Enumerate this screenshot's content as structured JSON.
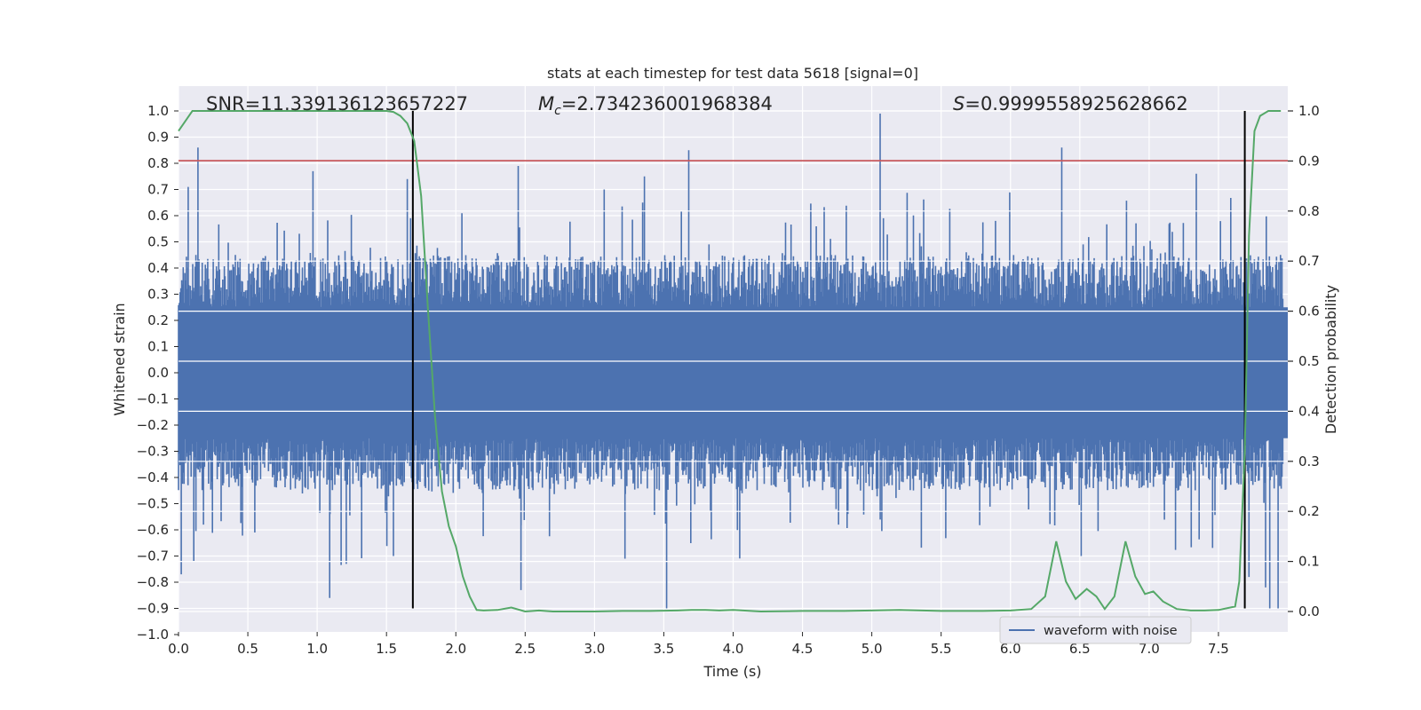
{
  "chart_data": {
    "type": "line",
    "title": "stats at each timestep for test data 5618 [signal=0]",
    "xlabel": "Time (s)",
    "ylabel": "Whitened strain",
    "ylabel_right": "Detection probability",
    "xlim": [
      0.0,
      8.0
    ],
    "ylim": [
      -1.0,
      1.0
    ],
    "ylim_right": [
      -0.05,
      1.05
    ],
    "xticks": [
      0.0,
      0.5,
      1.0,
      1.5,
      2.0,
      2.5,
      3.0,
      3.5,
      4.0,
      4.5,
      5.0,
      5.5,
      6.0,
      6.5,
      7.0,
      7.5
    ],
    "xtick_labels": [
      "0.0",
      "0.5",
      "1.0",
      "1.5",
      "2.0",
      "2.5",
      "3.0",
      "3.5",
      "4.0",
      "4.5",
      "5.0",
      "5.5",
      "6.0",
      "6.5",
      "7.0",
      "7.5"
    ],
    "yticks": [
      -1.0,
      -0.9,
      -0.8,
      -0.7,
      -0.6,
      -0.5,
      -0.4,
      -0.3,
      -0.2,
      -0.1,
      0.0,
      0.1,
      0.2,
      0.3,
      0.4,
      0.5,
      0.6,
      0.7,
      0.8,
      0.9,
      1.0
    ],
    "ytick_labels": [
      "−1.0",
      "−0.9",
      "−0.8",
      "−0.7",
      "−0.6",
      "−0.5",
      "−0.4",
      "−0.3",
      "−0.2",
      "−0.1",
      "0.0",
      "0.1",
      "0.2",
      "0.3",
      "0.4",
      "0.5",
      "0.6",
      "0.7",
      "0.8",
      "0.9",
      "1.0"
    ],
    "yticks_right": [
      0.0,
      0.1,
      0.2,
      0.3,
      0.4,
      0.5,
      0.6,
      0.7,
      0.8,
      0.9,
      1.0
    ],
    "ytick_labels_right": [
      "0.0",
      "0.1",
      "0.2",
      "0.3",
      "0.4",
      "0.5",
      "0.6",
      "0.7",
      "0.8",
      "0.9",
      "1.0"
    ],
    "grid": true,
    "legend": {
      "entries": [
        "waveform with noise"
      ],
      "placement": "lower-right"
    },
    "annotations": {
      "snr": "SNR=11.339136123657227",
      "mc_symbol": "M",
      "mc_subscript": "c",
      "mc_value": "=2.734236001968384",
      "s_symbol": "S",
      "s_value": "=0.9999558925628662"
    },
    "threshold_line": {
      "value": 0.81,
      "axis": "left",
      "color": "#c44e52"
    },
    "vertical_markers": {
      "times": [
        1.69,
        7.69
      ],
      "left_range": [
        -0.9,
        1.0
      ],
      "color": "#000000"
    },
    "waveform_series": {
      "name": "waveform with noise",
      "color": "#4c72b0",
      "noise": {
        "core_amplitude": 0.25,
        "typical_peak": 0.45,
        "extreme_peak": 0.75,
        "random_seed": 5618
      },
      "spikes": [
        {
          "t": 0.02,
          "y": -0.77
        },
        {
          "t": 0.07,
          "y": 0.71
        },
        {
          "t": 0.14,
          "y": 0.86
        },
        {
          "t": 0.11,
          "y": -0.72
        },
        {
          "t": 0.18,
          "y": -0.58
        },
        {
          "t": 0.55,
          "y": -0.61
        },
        {
          "t": 0.97,
          "y": 0.77
        },
        {
          "t": 1.09,
          "y": -0.86
        },
        {
          "t": 1.21,
          "y": -0.73
        },
        {
          "t": 1.55,
          "y": -0.7
        },
        {
          "t": 1.65,
          "y": 0.74
        },
        {
          "t": 2.45,
          "y": 0.79
        },
        {
          "t": 2.47,
          "y": -0.83
        },
        {
          "t": 3.07,
          "y": 0.7
        },
        {
          "t": 3.22,
          "y": -0.71
        },
        {
          "t": 3.36,
          "y": 0.75
        },
        {
          "t": 3.52,
          "y": -0.9
        },
        {
          "t": 3.68,
          "y": 0.85
        },
        {
          "t": 4.76,
          "y": -0.58
        },
        {
          "t": 5.06,
          "y": 0.99
        },
        {
          "t": 6.37,
          "y": 0.86
        },
        {
          "t": 6.51,
          "y": -0.7
        },
        {
          "t": 7.34,
          "y": 0.76
        },
        {
          "t": 7.72,
          "y": -0.78
        },
        {
          "t": 7.84,
          "y": -0.82
        },
        {
          "t": 7.87,
          "y": -0.9
        },
        {
          "t": 7.93,
          "y": -0.9
        }
      ]
    },
    "probability_series": {
      "name": "detection probability",
      "color": "#55a868",
      "t": [
        0.0,
        0.05,
        0.1,
        0.2,
        0.4,
        0.6,
        0.8,
        1.0,
        1.2,
        1.4,
        1.5,
        1.55,
        1.6,
        1.65,
        1.7,
        1.75,
        1.8,
        1.85,
        1.9,
        1.95,
        2.0,
        2.05,
        2.1,
        2.15,
        2.2,
        2.3,
        2.4,
        2.5,
        2.6,
        2.7,
        2.8,
        3.0,
        3.2,
        3.4,
        3.6,
        3.7,
        3.8,
        3.9,
        4.0,
        4.2,
        4.5,
        4.8,
        5.0,
        5.2,
        5.5,
        5.8,
        6.0,
        6.15,
        6.25,
        6.33,
        6.4,
        6.47,
        6.55,
        6.62,
        6.68,
        6.75,
        6.83,
        6.9,
        6.97,
        7.03,
        7.1,
        7.2,
        7.3,
        7.4,
        7.5,
        7.62,
        7.65,
        7.69,
        7.72,
        7.76,
        7.8,
        7.86,
        7.95
      ],
      "p": [
        0.96,
        0.98,
        1.0,
        1.0,
        1.0,
        1.0,
        1.0,
        1.0,
        1.0,
        1.0,
        1.0,
        0.998,
        0.99,
        0.975,
        0.94,
        0.83,
        0.6,
        0.39,
        0.24,
        0.17,
        0.13,
        0.07,
        0.03,
        0.003,
        0.002,
        0.003,
        0.008,
        0.0,
        0.002,
        0.0,
        0.0,
        0.0,
        0.001,
        0.001,
        0.002,
        0.003,
        0.003,
        0.002,
        0.003,
        0.0,
        0.001,
        0.001,
        0.002,
        0.003,
        0.001,
        0.001,
        0.002,
        0.005,
        0.03,
        0.14,
        0.06,
        0.025,
        0.045,
        0.03,
        0.005,
        0.03,
        0.14,
        0.07,
        0.035,
        0.04,
        0.02,
        0.005,
        0.002,
        0.002,
        0.003,
        0.01,
        0.06,
        0.32,
        0.75,
        0.96,
        0.99,
        1.0,
        1.0
      ]
    }
  }
}
